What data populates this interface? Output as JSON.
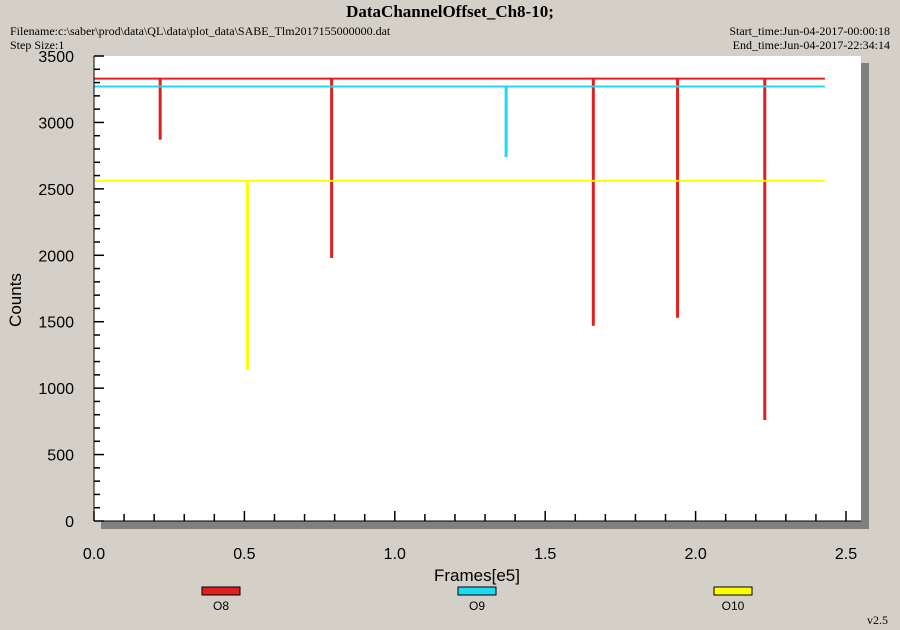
{
  "header": {
    "title": "DataChannelOffset_Ch8-10;",
    "filename": "Filename:c:\\saber\\prod\\data\\QL\\data\\plot_data\\SABE_Tlm2017155000000.dat",
    "step_size": "Step Size:1",
    "start_time": "Start_time:Jun-04-2017-00:00:18",
    "end_time": "End_time:Jun-04-2017-22:34:14"
  },
  "version": "v2.5",
  "chart_data": {
    "type": "line",
    "xlabel": "Frames[e5]",
    "ylabel": "Counts",
    "xlim": [
      0,
      2.5
    ],
    "ylim": [
      0,
      3500
    ],
    "x_ticks": [
      "0.0",
      "0.5",
      "1.0",
      "1.5",
      "2.0",
      "2.5"
    ],
    "y_ticks": [
      "0",
      "500",
      "1000",
      "1500",
      "2000",
      "2500",
      "3000",
      "3500"
    ],
    "grid": false,
    "legend_position": "bottom",
    "series": [
      {
        "name": "O8",
        "color": "#e02020",
        "baseline": 3330,
        "x_end": 2.43,
        "dips": [
          {
            "x": 0.22,
            "y": 2870
          },
          {
            "x": 0.79,
            "y": 1980
          },
          {
            "x": 1.66,
            "y": 1470
          },
          {
            "x": 1.94,
            "y": 1530
          },
          {
            "x": 2.23,
            "y": 760
          }
        ]
      },
      {
        "name": "O9",
        "color": "#20d8f0",
        "baseline": 3270,
        "x_end": 2.43,
        "dips": [
          {
            "x": 1.37,
            "y": 2740
          }
        ]
      },
      {
        "name": "O10",
        "color": "#ffff00",
        "baseline": 2560,
        "x_end": 2.43,
        "dips": [
          {
            "x": 0.51,
            "y": 1140
          }
        ]
      }
    ]
  }
}
